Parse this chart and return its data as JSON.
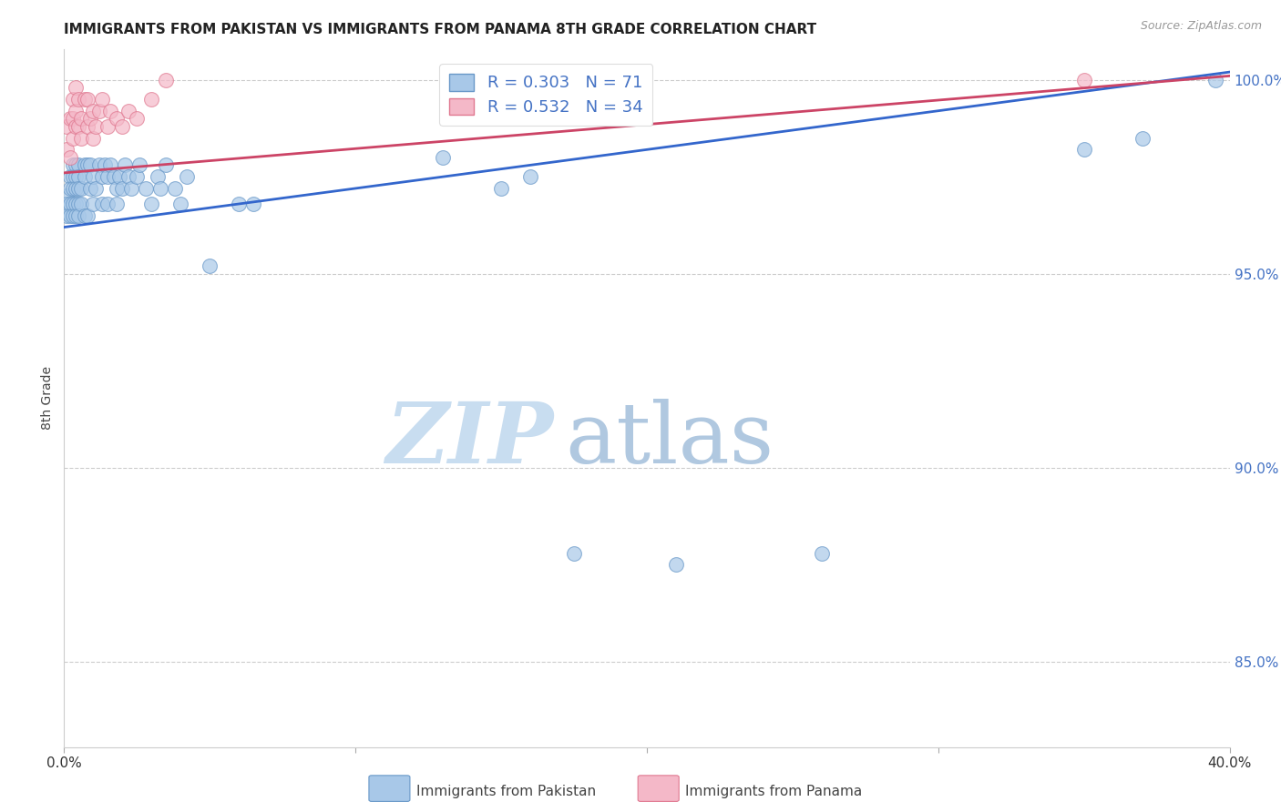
{
  "title": "IMMIGRANTS FROM PAKISTAN VS IMMIGRANTS FROM PANAMA 8TH GRADE CORRELATION CHART",
  "source": "Source: ZipAtlas.com",
  "ylabel": "8th Grade",
  "R_pakistan": 0.303,
  "N_pakistan": 71,
  "R_panama": 0.532,
  "N_panama": 34,
  "pakistan_color": "#A8C8E8",
  "panama_color": "#F4B8C8",
  "pakistan_edge_color": "#6898C8",
  "panama_edge_color": "#E07890",
  "pakistan_line_color": "#3366CC",
  "panama_line_color": "#CC4466",
  "legend_pakistan": "Immigrants from Pakistan",
  "legend_panama": "Immigrants from Panama",
  "xmin": 0.0,
  "xmax": 0.4,
  "ymin": 0.828,
  "ymax": 1.008,
  "yticks": [
    0.85,
    0.9,
    0.95,
    1.0
  ],
  "ytick_labels": [
    "85.0%",
    "90.0%",
    "95.0%",
    "100.0%"
  ],
  "watermark_zip": "ZIP",
  "watermark_atlas": "atlas",
  "background_color": "#ffffff",
  "grid_color": "#cccccc",
  "pakistan_x": [
    0.001,
    0.001,
    0.001,
    0.002,
    0.002,
    0.002,
    0.002,
    0.003,
    0.003,
    0.003,
    0.003,
    0.003,
    0.004,
    0.004,
    0.004,
    0.004,
    0.004,
    0.005,
    0.005,
    0.005,
    0.005,
    0.005,
    0.006,
    0.006,
    0.007,
    0.007,
    0.007,
    0.008,
    0.008,
    0.009,
    0.009,
    0.01,
    0.01,
    0.011,
    0.012,
    0.013,
    0.013,
    0.014,
    0.015,
    0.015,
    0.016,
    0.017,
    0.018,
    0.018,
    0.019,
    0.02,
    0.021,
    0.022,
    0.023,
    0.025,
    0.026,
    0.028,
    0.03,
    0.032,
    0.033,
    0.035,
    0.038,
    0.04,
    0.042,
    0.05,
    0.06,
    0.065,
    0.13,
    0.15,
    0.16,
    0.175,
    0.21,
    0.26,
    0.35,
    0.37,
    0.395
  ],
  "pakistan_y": [
    0.97,
    0.968,
    0.965,
    0.975,
    0.972,
    0.968,
    0.965,
    0.978,
    0.975,
    0.972,
    0.968,
    0.965,
    0.978,
    0.975,
    0.972,
    0.968,
    0.965,
    0.978,
    0.975,
    0.972,
    0.968,
    0.965,
    0.972,
    0.968,
    0.978,
    0.975,
    0.965,
    0.978,
    0.965,
    0.978,
    0.972,
    0.975,
    0.968,
    0.972,
    0.978,
    0.975,
    0.968,
    0.978,
    0.975,
    0.968,
    0.978,
    0.975,
    0.968,
    0.972,
    0.975,
    0.972,
    0.978,
    0.975,
    0.972,
    0.975,
    0.978,
    0.972,
    0.968,
    0.975,
    0.972,
    0.978,
    0.972,
    0.968,
    0.975,
    0.952,
    0.968,
    0.968,
    0.98,
    0.972,
    0.975,
    0.878,
    0.875,
    0.878,
    0.982,
    0.985,
    1.0
  ],
  "panama_x": [
    0.001,
    0.001,
    0.002,
    0.002,
    0.003,
    0.003,
    0.003,
    0.004,
    0.004,
    0.004,
    0.005,
    0.005,
    0.006,
    0.006,
    0.007,
    0.008,
    0.008,
    0.009,
    0.01,
    0.01,
    0.011,
    0.012,
    0.013,
    0.015,
    0.016,
    0.018,
    0.02,
    0.022,
    0.025,
    0.03,
    0.035,
    0.16,
    0.17,
    0.35
  ],
  "panama_y": [
    0.982,
    0.988,
    0.98,
    0.99,
    0.985,
    0.99,
    0.995,
    0.988,
    0.992,
    0.998,
    0.988,
    0.995,
    0.985,
    0.99,
    0.995,
    0.988,
    0.995,
    0.99,
    0.985,
    0.992,
    0.988,
    0.992,
    0.995,
    0.988,
    0.992,
    0.99,
    0.988,
    0.992,
    0.99,
    0.995,
    1.0,
    0.995,
    1.0,
    1.0
  ]
}
